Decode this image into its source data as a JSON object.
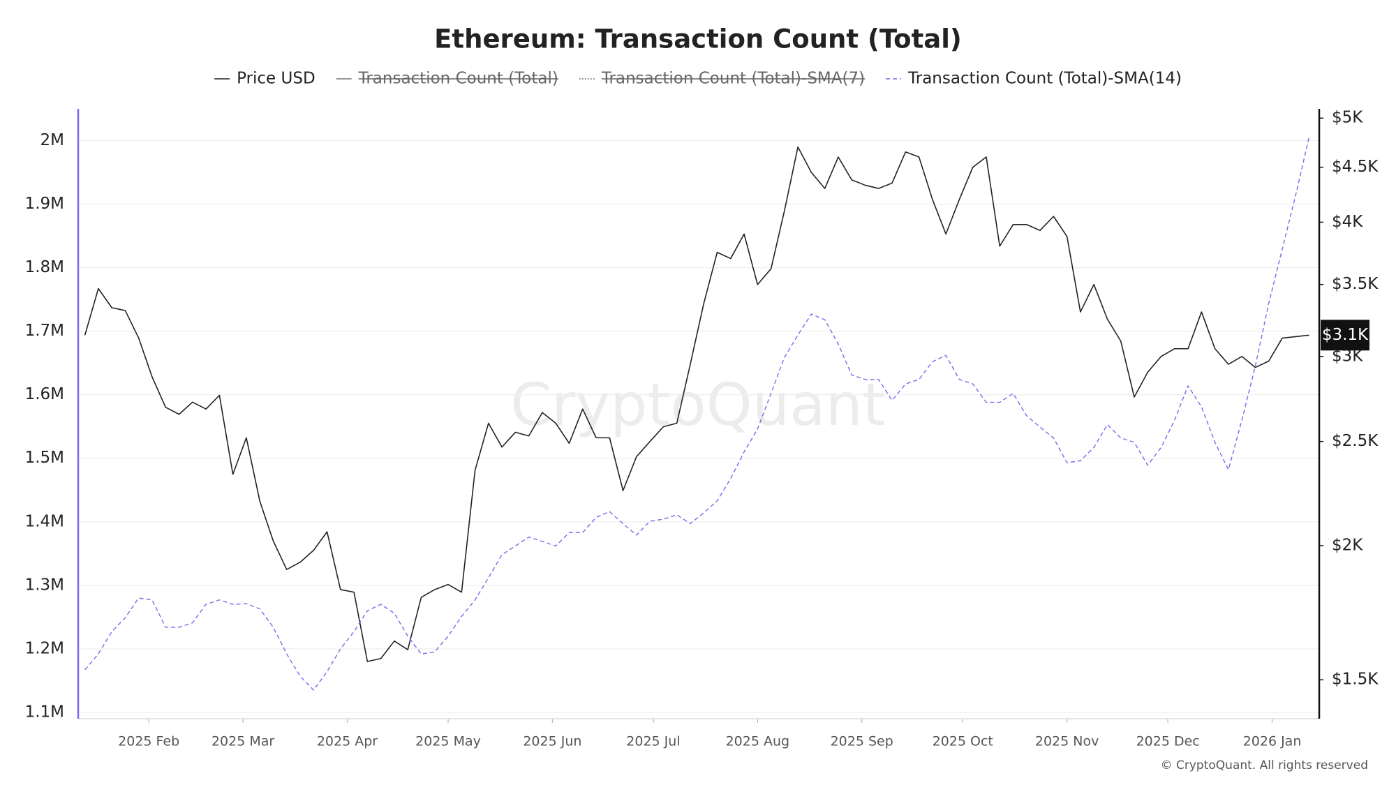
{
  "chart_data": {
    "type": "line",
    "title": "Ethereum: Transaction Count (Total)",
    "watermark": "CryptoQuant",
    "copyright": "© CryptoQuant. All rights reserved",
    "x": [
      "2025-01-13",
      "2025-01-17",
      "2025-01-21",
      "2025-01-25",
      "2025-01-29",
      "2025-02-02",
      "2025-02-06",
      "2025-02-10",
      "2025-02-14",
      "2025-02-18",
      "2025-02-22",
      "2025-02-26",
      "2025-03-02",
      "2025-03-06",
      "2025-03-10",
      "2025-03-14",
      "2025-03-18",
      "2025-03-22",
      "2025-03-26",
      "2025-03-30",
      "2025-04-03",
      "2025-04-07",
      "2025-04-11",
      "2025-04-15",
      "2025-04-19",
      "2025-04-23",
      "2025-04-27",
      "2025-05-01",
      "2025-05-05",
      "2025-05-09",
      "2025-05-13",
      "2025-05-17",
      "2025-05-21",
      "2025-05-25",
      "2025-05-29",
      "2025-06-02",
      "2025-06-06",
      "2025-06-10",
      "2025-06-14",
      "2025-06-18",
      "2025-06-22",
      "2025-06-26",
      "2025-06-30",
      "2025-07-04",
      "2025-07-08",
      "2025-07-12",
      "2025-07-16",
      "2025-07-20",
      "2025-07-24",
      "2025-07-28",
      "2025-08-01",
      "2025-08-05",
      "2025-08-09",
      "2025-08-13",
      "2025-08-17",
      "2025-08-21",
      "2025-08-25",
      "2025-08-29",
      "2025-09-02",
      "2025-09-06",
      "2025-09-10",
      "2025-09-14",
      "2025-09-18",
      "2025-09-22",
      "2025-09-26",
      "2025-09-30",
      "2025-10-04",
      "2025-10-08",
      "2025-10-12",
      "2025-10-16",
      "2025-10-20",
      "2025-10-24",
      "2025-10-28",
      "2025-11-01",
      "2025-11-05",
      "2025-11-09",
      "2025-11-13",
      "2025-11-17",
      "2025-11-21",
      "2025-11-25",
      "2025-11-29",
      "2025-12-03",
      "2025-12-07",
      "2025-12-11",
      "2025-12-15",
      "2025-12-19",
      "2025-12-23",
      "2025-12-27",
      "2025-12-31",
      "2026-01-04",
      "2026-01-08",
      "2026-01-12"
    ],
    "xlim": [
      "2025-01-11",
      "2026-01-15"
    ],
    "xticks": [
      {
        "value": "2025-02-01",
        "label": "2025 Feb"
      },
      {
        "value": "2025-03-01",
        "label": "2025 Mar"
      },
      {
        "value": "2025-04-01",
        "label": "2025 Apr"
      },
      {
        "value": "2025-05-01",
        "label": "2025 May"
      },
      {
        "value": "2025-06-01",
        "label": "2025 Jun"
      },
      {
        "value": "2025-07-01",
        "label": "2025 Jul"
      },
      {
        "value": "2025-08-01",
        "label": "2025 Aug"
      },
      {
        "value": "2025-09-01",
        "label": "2025 Sep"
      },
      {
        "value": "2025-10-01",
        "label": "2025 Oct"
      },
      {
        "value": "2025-11-01",
        "label": "2025 Nov"
      },
      {
        "value": "2025-12-01",
        "label": "2025 Dec"
      },
      {
        "value": "2026-01-01",
        "label": "2026 Jan"
      }
    ],
    "ylim": [
      1090000,
      2050000
    ],
    "yticks": [
      {
        "value": 1100000,
        "label": "1.1M"
      },
      {
        "value": 1200000,
        "label": "1.2M"
      },
      {
        "value": 1300000,
        "label": "1.3M"
      },
      {
        "value": 1400000,
        "label": "1.4M"
      },
      {
        "value": 1500000,
        "label": "1.5M"
      },
      {
        "value": 1600000,
        "label": "1.6M"
      },
      {
        "value": 1700000,
        "label": "1.7M"
      },
      {
        "value": 1800000,
        "label": "1.8M"
      },
      {
        "value": 1900000,
        "label": "1.9M"
      },
      {
        "value": 2000000,
        "label": "2M"
      }
    ],
    "y2lim": [
      1380,
      5100
    ],
    "y2scale": "log",
    "y2ticks": [
      {
        "value": 1500,
        "label": "$1.5K"
      },
      {
        "value": 2000,
        "label": "$2K"
      },
      {
        "value": 2500,
        "label": "$2.5K"
      },
      {
        "value": 3000,
        "label": "$3K"
      },
      {
        "value": 3500,
        "label": "$3.5K"
      },
      {
        "value": 4000,
        "label": "$4K"
      },
      {
        "value": 4500,
        "label": "$4.5K"
      },
      {
        "value": 5000,
        "label": "$5K"
      }
    ],
    "grid": true,
    "y_axis_color": "#7b68ee",
    "y2_axis_color": "#111111",
    "current_price": {
      "value": 3140,
      "label": "$3.1K"
    },
    "series": [
      {
        "name": "Price USD",
        "color": "#222222",
        "style": "solid",
        "axis": "y2",
        "values": [
          3140,
          3470,
          3330,
          3310,
          3120,
          2870,
          2690,
          2650,
          2720,
          2680,
          2760,
          2330,
          2520,
          2200,
          2020,
          1900,
          1930,
          1980,
          2060,
          1820,
          1810,
          1560,
          1570,
          1630,
          1600,
          1790,
          1820,
          1840,
          1810,
          2350,
          2600,
          2470,
          2550,
          2530,
          2660,
          2600,
          2490,
          2680,
          2520,
          2520,
          2250,
          2420,
          2500,
          2580,
          2600,
          2950,
          3360,
          3750,
          3700,
          3900,
          3500,
          3620,
          4100,
          4700,
          4450,
          4300,
          4600,
          4380,
          4330,
          4300,
          4350,
          4650,
          4600,
          4200,
          3900,
          4200,
          4500,
          4600,
          3800,
          3980,
          3980,
          3930,
          4050,
          3880,
          3300,
          3500,
          3250,
          3100,
          2750,
          2900,
          3000,
          3050,
          3050,
          3300,
          3050,
          2950,
          3000,
          2930,
          2970,
          3120,
          3130,
          3140
        ]
      },
      {
        "name": "Transaction Count (Total)",
        "color": "#444444",
        "style": "solid",
        "hidden": true
      },
      {
        "name": "Transaction Count (Total)-SMA(7)",
        "color": "#999999",
        "style": "dotted",
        "hidden": true
      },
      {
        "name": "Transaction Count (Total)-SMA(14)",
        "color": "#7b68ee",
        "style": "dashed",
        "axis": "y",
        "values": [
          1167000,
          1192000,
          1227000,
          1249000,
          1280000,
          1277000,
          1234000,
          1234000,
          1241000,
          1270000,
          1277000,
          1270000,
          1271000,
          1263000,
          1234000,
          1192000,
          1157000,
          1135000,
          1164000,
          1200000,
          1227000,
          1260000,
          1270000,
          1256000,
          1220000,
          1192000,
          1195000,
          1220000,
          1251000,
          1277000,
          1312000,
          1348000,
          1362000,
          1376000,
          1369000,
          1362000,
          1383000,
          1383000,
          1407000,
          1416000,
          1397000,
          1379000,
          1401000,
          1404000,
          1411000,
          1397000,
          1414000,
          1433000,
          1468000,
          1510000,
          1546000,
          1602000,
          1659000,
          1694000,
          1727000,
          1718000,
          1680000,
          1631000,
          1624000,
          1624000,
          1591000,
          1617000,
          1624000,
          1652000,
          1662000,
          1624000,
          1617000,
          1588000,
          1588000,
          1602000,
          1567000,
          1549000,
          1532000,
          1493000,
          1496000,
          1517000,
          1553000,
          1532000,
          1525000,
          1489000,
          1517000,
          1560000,
          1614000,
          1581000,
          1525000,
          1482000,
          1560000,
          1645000,
          1744000,
          1829000,
          1914000,
          2006000
        ]
      }
    ]
  }
}
